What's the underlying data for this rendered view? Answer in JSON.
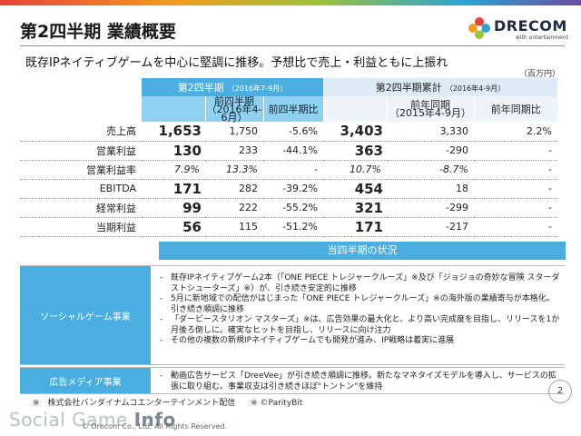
{
  "title": "第2四半期 業績概要",
  "logo": {
    "name": "DRECOM",
    "tagline": "with entertainment"
  },
  "subtitle": "既存IPネイティブゲームを中心に堅調に推移。予想比で売上・利益ともに上振れ",
  "unit": "（百万円）",
  "table": {
    "q_title": "第2四半期",
    "q_period": "（2016年7-9月）",
    "c_title": "第2四半期累計",
    "c_period": "（2016年4-9月）",
    "q_prev_label_1": "前四半期",
    "q_prev_label_2": "（2016年4-6月）",
    "q_ratio_label": "前四半期比",
    "c_prev_label_1": "前年同期",
    "c_prev_label_2": "（2015年4-9月）",
    "c_ratio_label": "前年同期比",
    "rows": [
      {
        "label": "売上高",
        "q": "1,653",
        "q_prev": "1,750",
        "q_ratio": "-5.6%",
        "c": "3,403",
        "c_prev": "3,330",
        "c_ratio": "2.2%"
      },
      {
        "label": "営業利益",
        "q": "130",
        "q_prev": "233",
        "q_ratio": "-44.1%",
        "c": "363",
        "c_prev": "-290",
        "c_ratio": "-"
      },
      {
        "label": "営業利益率",
        "q": "7.9%",
        "q_prev": "13.3%",
        "q_ratio": "-",
        "c": "10.7%",
        "c_prev": "-8.7%",
        "c_ratio": "-"
      },
      {
        "label": "EBITDA",
        "q": "171",
        "q_prev": "282",
        "q_ratio": "-39.2%",
        "c": "454",
        "c_prev": "18",
        "c_ratio": "-"
      },
      {
        "label": "経常利益",
        "q": "99",
        "q_prev": "222",
        "q_ratio": "-55.2%",
        "c": "321",
        "c_prev": "-299",
        "c_ratio": "-"
      },
      {
        "label": "当期利益",
        "q": "56",
        "q_prev": "115",
        "q_ratio": "-51.2%",
        "c": "171",
        "c_prev": "-217",
        "c_ratio": "-"
      }
    ]
  },
  "status": {
    "heading": "当四半期の状況",
    "social": {
      "label": "ソーシャルゲーム事業",
      "items": [
        "既存IPネイティブゲーム2本（「ONE PIECE トレジャークルーズ」※及び「ジョジョの奇妙な冒険 スターダストシューターズ」※）が、引き続き安定的に推移",
        "5月に新地域での配信がはじまった「ONE PIECE トレジャークルーズ」※の海外版の業績寄与が本格化。引き続き順調に推移",
        "「ダービースタリオン マスターズ」※は、広告効果の最大化と、より高い完成度を目指し、リリースを1か月後ろ倒しに。確実なヒットを目指し、リリースに向け注力",
        "その他の複数の新規IPネイティブゲームでも開発が進み、IP戦略は着実に進展"
      ]
    },
    "ad": {
      "label": "広告メディア事業",
      "items": [
        "動画広告サービス「DreeVee」が引き続き順調に推移。新たなマネタイズモデルを導入し、サービスの拡張に取り組む。事業収支は引き続きほぼ\"トントン\"を維持"
      ]
    }
  },
  "notes": [
    "※　株式会社バンダイナムコエンターテインメント配信",
    "※ ©ParityBit"
  ],
  "watermark": {
    "prefix": "Social Game ",
    "suffix": "Info"
  },
  "copyright": "© Drecom Co., Ltd. All Rights Reserved.",
  "page_number": "2"
}
